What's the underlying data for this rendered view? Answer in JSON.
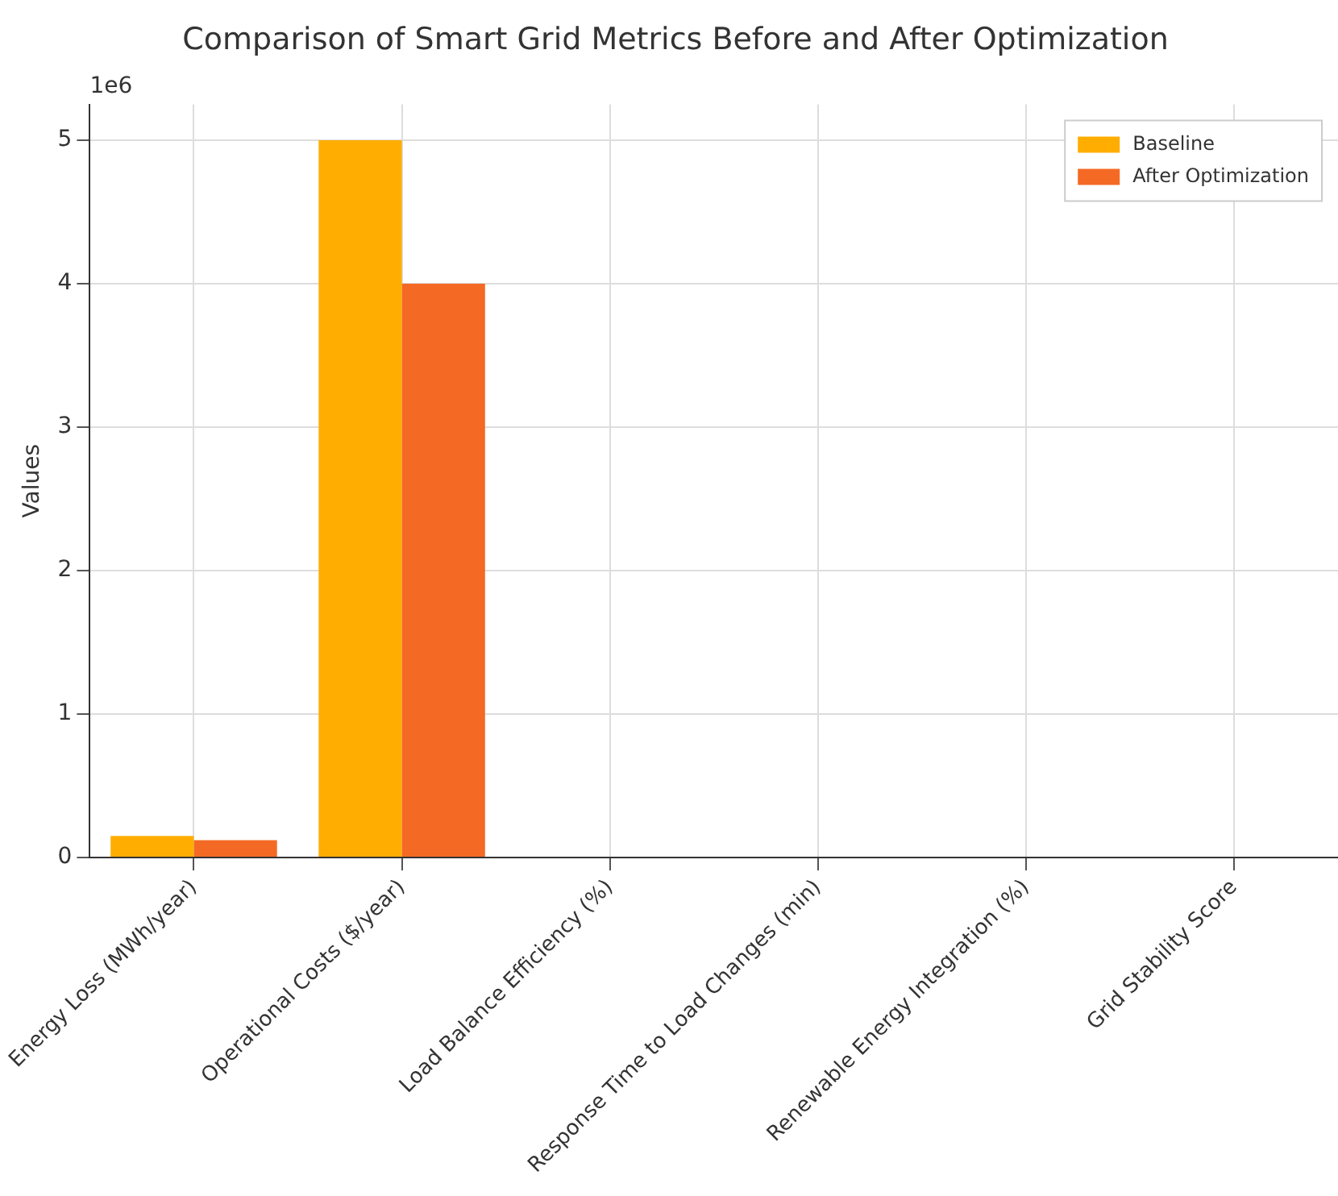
{
  "chart_data": {
    "type": "bar",
    "title": "Comparison of Smart Grid Metrics Before and After Optimization",
    "ylabel": "Values",
    "categories": [
      "Energy Loss (MWh/year)",
      "Operational Costs ($/year)",
      "Load Balance Efficiency (%)",
      "Response Time to Load Changes (min)",
      "Renewable Energy Integration (%)",
      "Grid Stability Score"
    ],
    "series": [
      {
        "name": "Baseline",
        "color": "#ffad00",
        "values": [
          0.15,
          5,
          0,
          0,
          0,
          0
        ]
      },
      {
        "name": "After Optimization",
        "color": "#f46a24",
        "values": [
          0.12,
          4,
          0,
          0,
          0,
          0
        ]
      }
    ],
    "ylim": [
      0,
      5.25
    ],
    "yticks": [
      0,
      1,
      2,
      3,
      4,
      5
    ],
    "annotations": [
      "1e6"
    ],
    "grid": true,
    "legend": "top right"
  }
}
